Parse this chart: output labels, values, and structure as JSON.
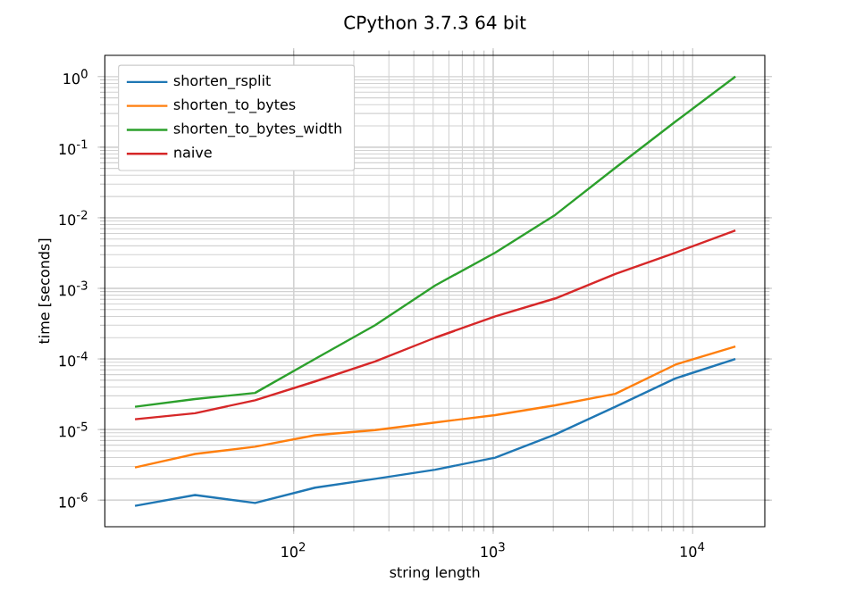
{
  "chart_data": {
    "type": "line",
    "title": "CPython 3.7.3 64 bit",
    "xlabel": "string length",
    "ylabel": "time [seconds]",
    "log": "xy",
    "grid": true,
    "legend": "top left",
    "x": [
      16,
      32,
      64,
      128,
      256,
      512,
      1024,
      2048,
      4096,
      8192,
      16384
    ],
    "series": [
      {
        "name": "shorten_rsplit",
        "color": "#1f77b4",
        "values": [
          8.3e-07,
          1.18e-06,
          9.1e-07,
          1.5e-06,
          2e-06,
          2.7e-06,
          4e-06,
          8.5e-06,
          2.1e-05,
          5.3e-05,
          0.0001
        ]
      },
      {
        "name": "shorten_to_bytes",
        "color": "#ff7f0e",
        "values": [
          2.9e-06,
          4.5e-06,
          5.7e-06,
          8.3e-06,
          9.8e-06,
          1.26e-05,
          1.6e-05,
          2.2e-05,
          3.2e-05,
          8.3e-05,
          0.00015
        ]
      },
      {
        "name": "shorten_to_bytes_width",
        "color": "#2ca02c",
        "values": [
          2.1e-05,
          2.7e-05,
          3.3e-05,
          0.0001,
          0.0003,
          0.0011,
          0.0032,
          0.011,
          0.051,
          0.23,
          1.0
        ]
      },
      {
        "name": "naive",
        "color": "#d62728",
        "values": [
          1.4e-05,
          1.7e-05,
          2.6e-05,
          4.8e-05,
          9.2e-05,
          0.0002,
          0.0004,
          0.00072,
          0.0016,
          0.0032,
          0.0066
        ]
      }
    ],
    "xlim": [
      11.3,
      23000
    ],
    "ylim": [
      4.2e-07,
      2.0
    ],
    "xticks": [
      {
        "value": 100,
        "label": "10$^{2}$"
      },
      {
        "value": 1000,
        "label": "10$^{3}$"
      },
      {
        "value": 10000,
        "label": "10$^{4}$"
      }
    ],
    "yticks": [
      {
        "value": 1e-06,
        "label": "10$^{-6}$"
      },
      {
        "value": 1e-05,
        "label": "10$^{-5}$"
      },
      {
        "value": 0.0001,
        "label": "10$^{-4}$"
      },
      {
        "value": 0.001,
        "label": "10$^{-3}$"
      },
      {
        "value": 0.01,
        "label": "10$^{-2}$"
      },
      {
        "value": 0.1,
        "label": "10$^{-1}$"
      },
      {
        "value": 1,
        "label": "10$^{0}$"
      }
    ]
  }
}
